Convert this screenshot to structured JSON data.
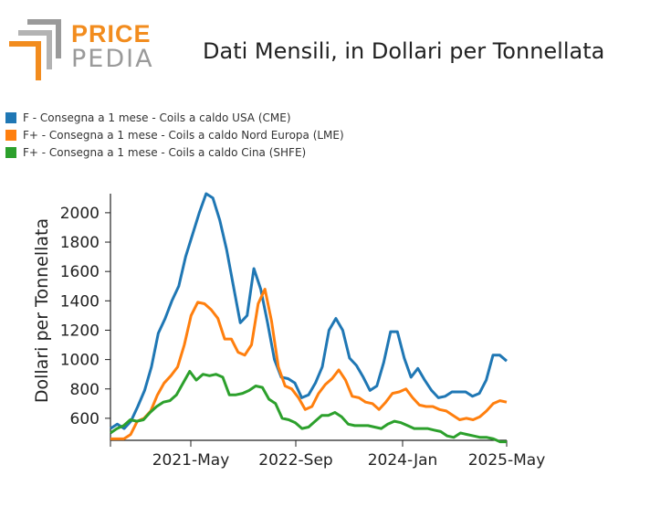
{
  "logo": {
    "word1": "PRICE",
    "word2": "PEDIA"
  },
  "chart_data": {
    "type": "line",
    "title": "Dati Mensili, in Dollari per Tonnellata",
    "ylabel": "Dollari per Tonnellata",
    "xlabel": "",
    "x_tick_labels": [
      "2021-May",
      "2022-Sep",
      "2024-Jan",
      "2025-May"
    ],
    "y_ticks": [
      600,
      800,
      1000,
      1200,
      1400,
      1600,
      1800,
      2000
    ],
    "ylim": [
      450,
      2130
    ],
    "legend_position": "top-left",
    "series": [
      {
        "name": "F - Consegna a 1 mese - Coils a caldo USA (CME)",
        "color": "#1f77b4",
        "values": [
          530,
          560,
          530,
          580,
          680,
          790,
          950,
          1180,
          1280,
          1400,
          1500,
          1700,
          1850,
          2000,
          2130,
          2100,
          1950,
          1750,
          1500,
          1250,
          1300,
          1620,
          1480,
          1250,
          1000,
          880,
          870,
          840,
          740,
          760,
          840,
          950,
          1200,
          1280,
          1200,
          1010,
          960,
          880,
          790,
          820,
          980,
          1190,
          1190,
          1010,
          880,
          940,
          860,
          790,
          740,
          750,
          780,
          780,
          780,
          750,
          770,
          860,
          1030,
          1030,
          990
        ]
      },
      {
        "name": "F+ - Consegna a 1 mese - Coils a caldo Nord Europa (LME)",
        "color": "#ff7f0e",
        "values": [
          460,
          460,
          460,
          490,
          580,
          600,
          650,
          760,
          840,
          890,
          950,
          1100,
          1300,
          1390,
          1380,
          1340,
          1280,
          1140,
          1140,
          1050,
          1030,
          1100,
          1380,
          1480,
          1260,
          950,
          820,
          800,
          740,
          660,
          680,
          770,
          830,
          870,
          930,
          860,
          750,
          740,
          710,
          700,
          660,
          710,
          770,
          780,
          800,
          740,
          690,
          680,
          680,
          660,
          650,
          620,
          590,
          600,
          590,
          610,
          650,
          700,
          720,
          710
        ]
      },
      {
        "name": "F+ - Consegna a 1 mese - Coils a caldo Cina (SHFE)",
        "color": "#2ca02c",
        "values": [
          500,
          530,
          550,
          590,
          580,
          590,
          640,
          680,
          710,
          720,
          760,
          840,
          920,
          860,
          900,
          890,
          900,
          880,
          760,
          760,
          770,
          790,
          820,
          810,
          730,
          700,
          600,
          590,
          570,
          530,
          540,
          580,
          620,
          620,
          640,
          610,
          560,
          550,
          550,
          550,
          540,
          530,
          560,
          580,
          570,
          550,
          530,
          530,
          530,
          520,
          510,
          480,
          470,
          500,
          490,
          480,
          470,
          470,
          460,
          440,
          440
        ]
      }
    ]
  }
}
